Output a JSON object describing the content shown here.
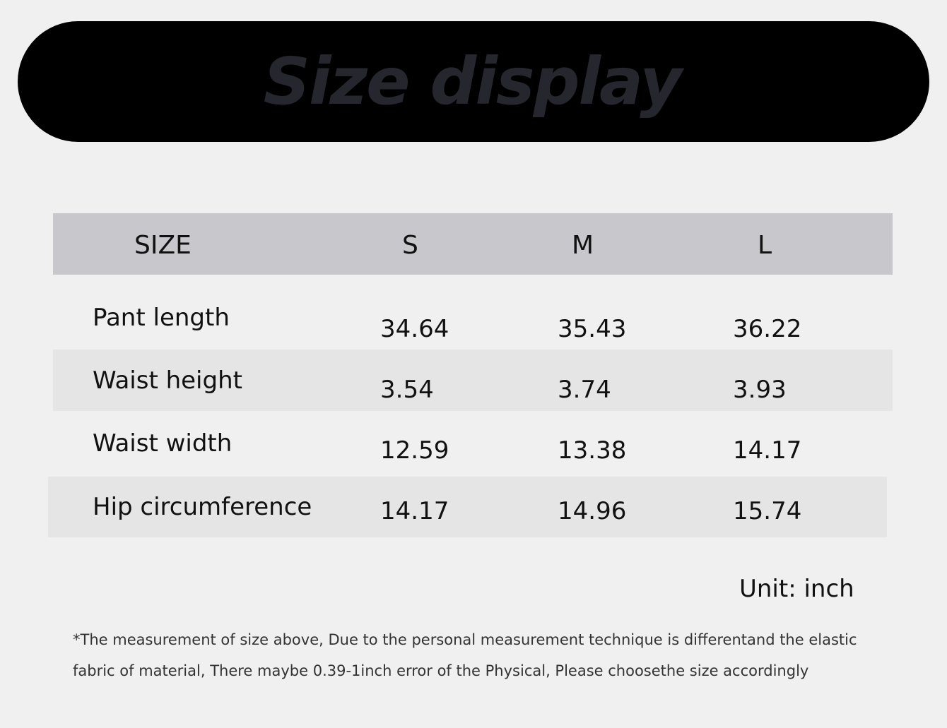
{
  "title": "Size display",
  "table": {
    "headers": [
      "SIZE",
      "S",
      "M",
      "L"
    ],
    "rows": [
      {
        "label": "Pant length",
        "values": [
          "34.64",
          "35.43",
          "36.22"
        ]
      },
      {
        "label": "Waist height",
        "values": [
          "3.54",
          "3.74",
          "3.93"
        ]
      },
      {
        "label": "Waist width",
        "values": [
          "12.59",
          "13.38",
          "14.17"
        ]
      },
      {
        "label": "Hip circumference",
        "values": [
          "14.17",
          "14.96",
          "15.74"
        ]
      }
    ]
  },
  "unit": "Unit: inch",
  "note": {
    "line1": "*The measurement of size above, Due to the personal measurement technique is differentand the elastic",
    "line2": "fabric of material, There maybe 0.39-1inch error of the Physical, Please choosethe size accordingly"
  },
  "colors": {
    "background": "#f0f0f0",
    "banner": "#000000",
    "title_text": "#26262e",
    "header_row": "#c8c8cc",
    "stripe_row": "#e5e5e5"
  }
}
